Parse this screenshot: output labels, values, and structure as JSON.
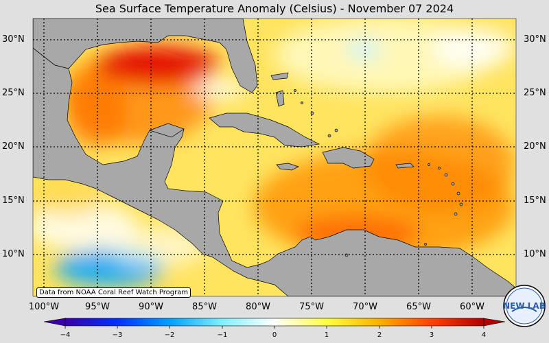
{
  "title": "Sea Surface Temperature Anomaly (Celsius) - November 07 2024",
  "credit": "Data from NOAA Coral Reef Watch Program",
  "logo_text": "NEW LAB",
  "lat_labels": [
    "30°N",
    "25°N",
    "20°N",
    "15°N",
    "10°N"
  ],
  "lon_labels": [
    "100°W",
    "95°W",
    "90°W",
    "85°W",
    "80°W",
    "75°W",
    "70°W",
    "65°W",
    "60°W"
  ],
  "colorbar": {
    "ticks": [
      "−4",
      "−3",
      "−2",
      "−1",
      "0",
      "1",
      "2",
      "3",
      "4"
    ],
    "range": [
      -4,
      4
    ],
    "colors": [
      "#3a00a8",
      "#0030ff",
      "#00a0ff",
      "#80f0ff",
      "#ffffff",
      "#ffff40",
      "#ffb000",
      "#ff4000",
      "#b00000"
    ]
  },
  "colors": {
    "land": "#a8a8a8",
    "background": "#e0e0e0"
  }
}
